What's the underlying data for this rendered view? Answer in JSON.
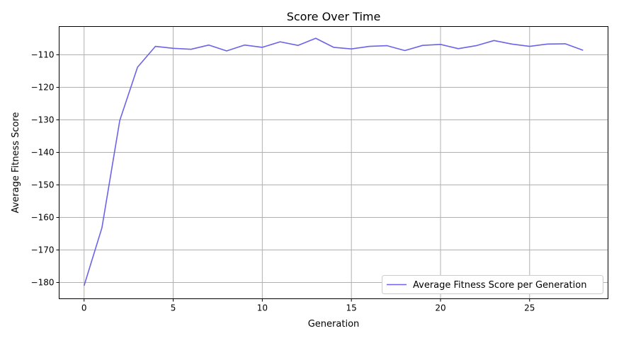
{
  "chart_data": {
    "type": "line",
    "title": "Score Over Time",
    "xlabel": "Generation",
    "ylabel": "Average Fitness Score",
    "xlim": [
      -1.4,
      29.4
    ],
    "ylim": [
      -185,
      -101.3
    ],
    "xticks": [
      0,
      5,
      10,
      15,
      20,
      25
    ],
    "yticks": [
      -180,
      -170,
      -160,
      -150,
      -140,
      -130,
      -120,
      -110
    ],
    "ytick_labels": [
      "−180",
      "−170",
      "−160",
      "−150",
      "−140",
      "−130",
      "−120",
      "−110"
    ],
    "grid": true,
    "legend_position": "lower-right",
    "series": [
      {
        "name": "Average Fitness Score per Generation",
        "color": "#6b63e8",
        "x": [
          0,
          1,
          2,
          3,
          4,
          5,
          6,
          7,
          8,
          9,
          10,
          11,
          12,
          13,
          14,
          15,
          16,
          17,
          18,
          19,
          20,
          21,
          22,
          23,
          24,
          25,
          26,
          27,
          28
        ],
        "y": [
          -181,
          -163.2,
          -130.2,
          -113.8,
          -107.4,
          -108,
          -108.3,
          -107,
          -108.8,
          -107,
          -107.7,
          -106,
          -107.1,
          -104.9,
          -107.7,
          -108.2,
          -107.4,
          -107.2,
          -108.7,
          -107.1,
          -106.8,
          -108.1,
          -107.2,
          -105.6,
          -106.7,
          -107.4,
          -106.7,
          -106.6,
          -108.6
        ]
      }
    ]
  }
}
